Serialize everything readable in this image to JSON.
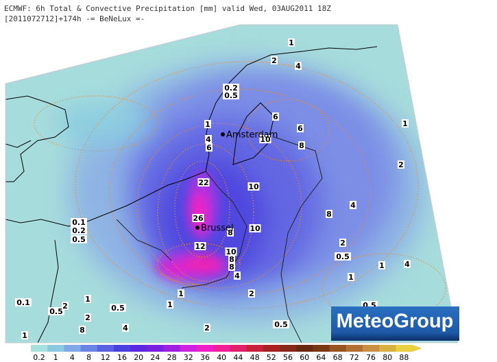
{
  "header": {
    "line1": "ECMWF: 6h Total & Convective Precipitation [mm] valid Wed, 03AUG2011 18Z",
    "line2": "[2011072712]+174h -= BeNeLux =-"
  },
  "logo": "MeteoGroup",
  "cities": [
    "Amsterdam",
    "Brussel"
  ],
  "contour_labels": [
    "1",
    "2",
    "4",
    "0.2",
    "0.5",
    "1",
    "6",
    "4",
    "10",
    "6",
    "8",
    "1",
    "6",
    "2",
    "22",
    "10",
    "4",
    "8",
    "26",
    "10",
    "8",
    "0.1",
    "0.2",
    "0.5",
    "12",
    "10",
    "2",
    "0.5",
    "8",
    "8",
    "1",
    "4",
    "4",
    "1",
    "1",
    "2",
    "1",
    "0.1",
    "0.5",
    "2",
    "0.5",
    "1",
    "0.5",
    "2",
    "8",
    "4",
    "2",
    "0.5",
    "1"
  ],
  "colorbar": {
    "ticks": [
      0.2,
      1,
      4,
      8,
      12,
      16,
      20,
      24,
      28,
      32,
      36,
      40,
      44,
      48,
      52,
      56,
      60,
      64,
      68,
      72,
      76,
      80,
      88
    ],
    "colors": [
      "#a8e0e0",
      "#8cc8e0",
      "#80a8e8",
      "#6a84e6",
      "#5a60e2",
      "#4a40e0",
      "#5a28e0",
      "#7a20e0",
      "#a020e0",
      "#d020e0",
      "#f020c8",
      "#f02098",
      "#e0206a",
      "#c8203a",
      "#a82020",
      "#882818",
      "#6a2810",
      "#7a3812",
      "#985420",
      "#b47030",
      "#c89040",
      "#d8b040",
      "#e8d040"
    ]
  }
}
